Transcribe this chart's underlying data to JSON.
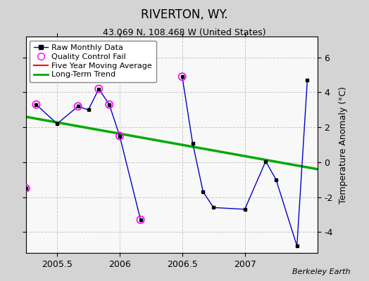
{
  "title": "RIVERTON, WY.",
  "subtitle": "43.069 N, 108.468 W (United States)",
  "credit": "Berkeley Earth",
  "xlim": [
    2005.25,
    2007.58
  ],
  "ylim": [
    -5.2,
    7.2
  ],
  "yticks": [
    -4,
    -2,
    0,
    2,
    4,
    6
  ],
  "xticks": [
    2005.5,
    2006.0,
    2006.5,
    2007.0
  ],
  "xticklabels": [
    "2005.5",
    "2006",
    "2006.5",
    "2007"
  ],
  "ylabel": "Temperature Anomaly (°C)",
  "fig_bg": "#d4d4d4",
  "plot_bg": "#f8f8f8",
  "raw_line_color": "#0000cc",
  "raw_marker_color": "black",
  "qc_color": "magenta",
  "trend_color": "#00aa00",
  "moving_avg_color": "red",
  "grid_color": "#c8c8c8",
  "raw_segments": [
    {
      "x": [
        2005.333,
        2005.5,
        2005.667,
        2005.75,
        2005.833,
        2005.917,
        2006.0,
        2006.167,
        2006.25
      ],
      "y": [
        3.3,
        2.2,
        3.2,
        3.0,
        4.2,
        3.3,
        1.5,
        -3.3,
        null
      ]
    },
    {
      "x": [
        2006.5,
        2006.583,
        2006.667,
        2006.75,
        2006.833,
        2007.0,
        2007.167,
        2007.25,
        2007.417,
        2007.5
      ],
      "y": [
        4.9,
        1.1,
        -1.7,
        -2.6,
        null,
        -2.7,
        0.05,
        -1.0,
        -4.8,
        4.7
      ]
    }
  ],
  "isolated_qc_x": [
    2005.25
  ],
  "isolated_qc_y": [
    -1.5
  ],
  "connected_points_x": [
    2005.333,
    2005.5,
    2005.667,
    2005.75,
    2005.833,
    2005.917,
    2006.0,
    2006.167,
    2006.5,
    2006.583,
    2006.667,
    2006.75,
    2007.0,
    2007.167,
    2007.25,
    2007.417,
    2007.5
  ],
  "connected_points_y": [
    3.3,
    2.2,
    3.2,
    3.0,
    4.2,
    3.3,
    1.5,
    -3.3,
    4.9,
    1.1,
    -1.7,
    -2.6,
    -2.7,
    0.05,
    -1.0,
    -4.8,
    4.7
  ],
  "qc_x": [
    2005.25,
    2005.333,
    2005.667,
    2005.833,
    2005.917,
    2006.0,
    2006.167,
    2006.5
  ],
  "qc_y": [
    -1.5,
    3.3,
    3.2,
    4.2,
    3.3,
    1.5,
    -3.3,
    4.9
  ],
  "trend_x": [
    2005.25,
    2007.58
  ],
  "trend_y": [
    2.6,
    -0.4
  ]
}
